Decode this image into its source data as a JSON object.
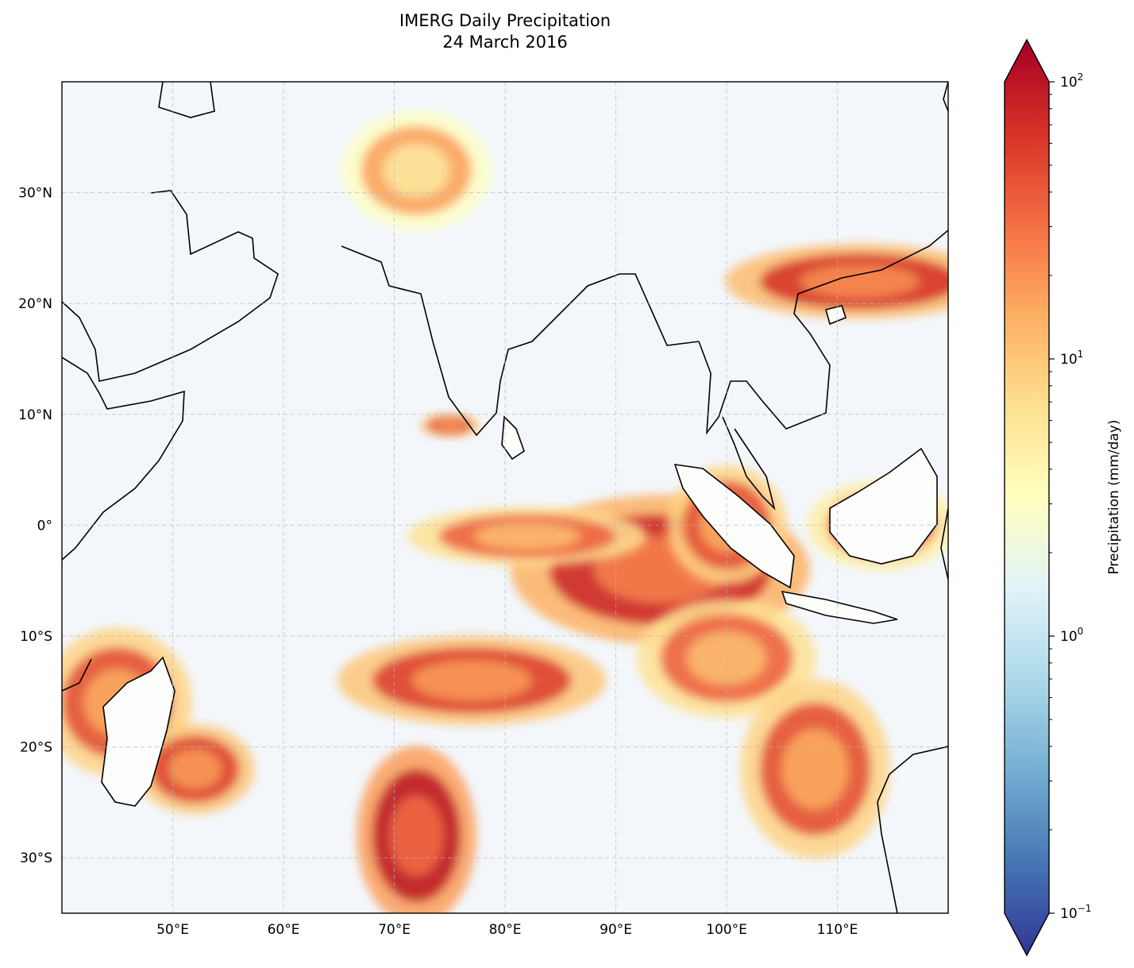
{
  "title": {
    "line1": "IMERG Daily Precipitation",
    "line2": "24 March 2016"
  },
  "map": {
    "projection": "PlateCarree",
    "lon_range": [
      40,
      120
    ],
    "lat_range": [
      -35,
      40
    ],
    "gridlines": true,
    "coastlines": true,
    "ocean_tint": "#f3f7fc",
    "land_tint": "#fdfdfc",
    "x_ticks": [
      {
        "value": 50,
        "label": "50°E"
      },
      {
        "value": 60,
        "label": "60°E"
      },
      {
        "value": 70,
        "label": "70°E"
      },
      {
        "value": 80,
        "label": "80°E"
      },
      {
        "value": 90,
        "label": "90°E"
      },
      {
        "value": 100,
        "label": "100°E"
      },
      {
        "value": 110,
        "label": "110°E"
      }
    ],
    "y_ticks": [
      {
        "value": 30,
        "label": "30°N"
      },
      {
        "value": 20,
        "label": "20°N"
      },
      {
        "value": 10,
        "label": "10°N"
      },
      {
        "value": 0,
        "label": "0°"
      },
      {
        "value": -10,
        "label": "10°S"
      },
      {
        "value": -20,
        "label": "20°S"
      },
      {
        "value": -30,
        "label": "30°S"
      }
    ],
    "precip_regions": [
      {
        "name": "maritime-continent-band",
        "lon": 94,
        "lat": -4,
        "rlon": 10,
        "rlat": 5,
        "level": 40
      },
      {
        "name": "equatorial-band-west",
        "lon": 82,
        "lat": -1,
        "rlon": 8,
        "rlat": 2,
        "level": 20
      },
      {
        "name": "sumatra",
        "lon": 100,
        "lat": 0,
        "rlon": 4,
        "rlat": 4,
        "level": 25
      },
      {
        "name": "borneo",
        "lon": 114,
        "lat": 0,
        "rlon": 5,
        "rlat": 3,
        "level": 15
      },
      {
        "name": "south-china",
        "lon": 112,
        "lat": 22,
        "rlon": 9,
        "rlat": 2.5,
        "level": 35
      },
      {
        "name": "tibet-north",
        "lon": 72,
        "lat": 32,
        "rlon": 5,
        "rlat": 4,
        "level": 10
      },
      {
        "name": "s-indian-convergence-1",
        "lon": 77,
        "lat": -14,
        "rlon": 9,
        "rlat": 3,
        "level": 30
      },
      {
        "name": "s-indian-convergence-2",
        "lon": 100,
        "lat": -12,
        "rlon": 6,
        "rlat": 4,
        "level": 20
      },
      {
        "name": "madagascar-west",
        "lon": 45,
        "lat": -16,
        "rlon": 5,
        "rlat": 5,
        "level": 25
      },
      {
        "name": "mozambique-channel",
        "lon": 52,
        "lat": -22,
        "rlon": 4,
        "rlat": 3,
        "level": 30
      },
      {
        "name": "frontal-band-south",
        "lon": 72,
        "lat": -28,
        "rlon": 4,
        "rlat": 6,
        "level": 50
      },
      {
        "name": "australia-west",
        "lon": 108,
        "lat": -22,
        "rlon": 5,
        "rlat": 6,
        "level": 25
      },
      {
        "name": "sri-lanka-west",
        "lon": 75,
        "lat": 9,
        "rlon": 2,
        "rlat": 0.8,
        "level": 30
      }
    ]
  },
  "colorbar": {
    "label": "Precipitation (mm/day)",
    "scale": "log",
    "range": [
      0.1,
      100
    ],
    "extend": "both",
    "colormap": "RdYlBu_r",
    "stops": [
      "#313695",
      "#4575b4",
      "#74add1",
      "#abd9e9",
      "#e0f3f8",
      "#ffffbf",
      "#fee090",
      "#fdae61",
      "#f46d43",
      "#d73027",
      "#a50026"
    ],
    "ticks": [
      {
        "value": 100,
        "base": "10",
        "exp": "2"
      },
      {
        "value": 10,
        "base": "10",
        "exp": "1"
      },
      {
        "value": 1,
        "base": "10",
        "exp": "0"
      },
      {
        "value": 0.1,
        "base": "10",
        "exp": "−1"
      }
    ]
  }
}
